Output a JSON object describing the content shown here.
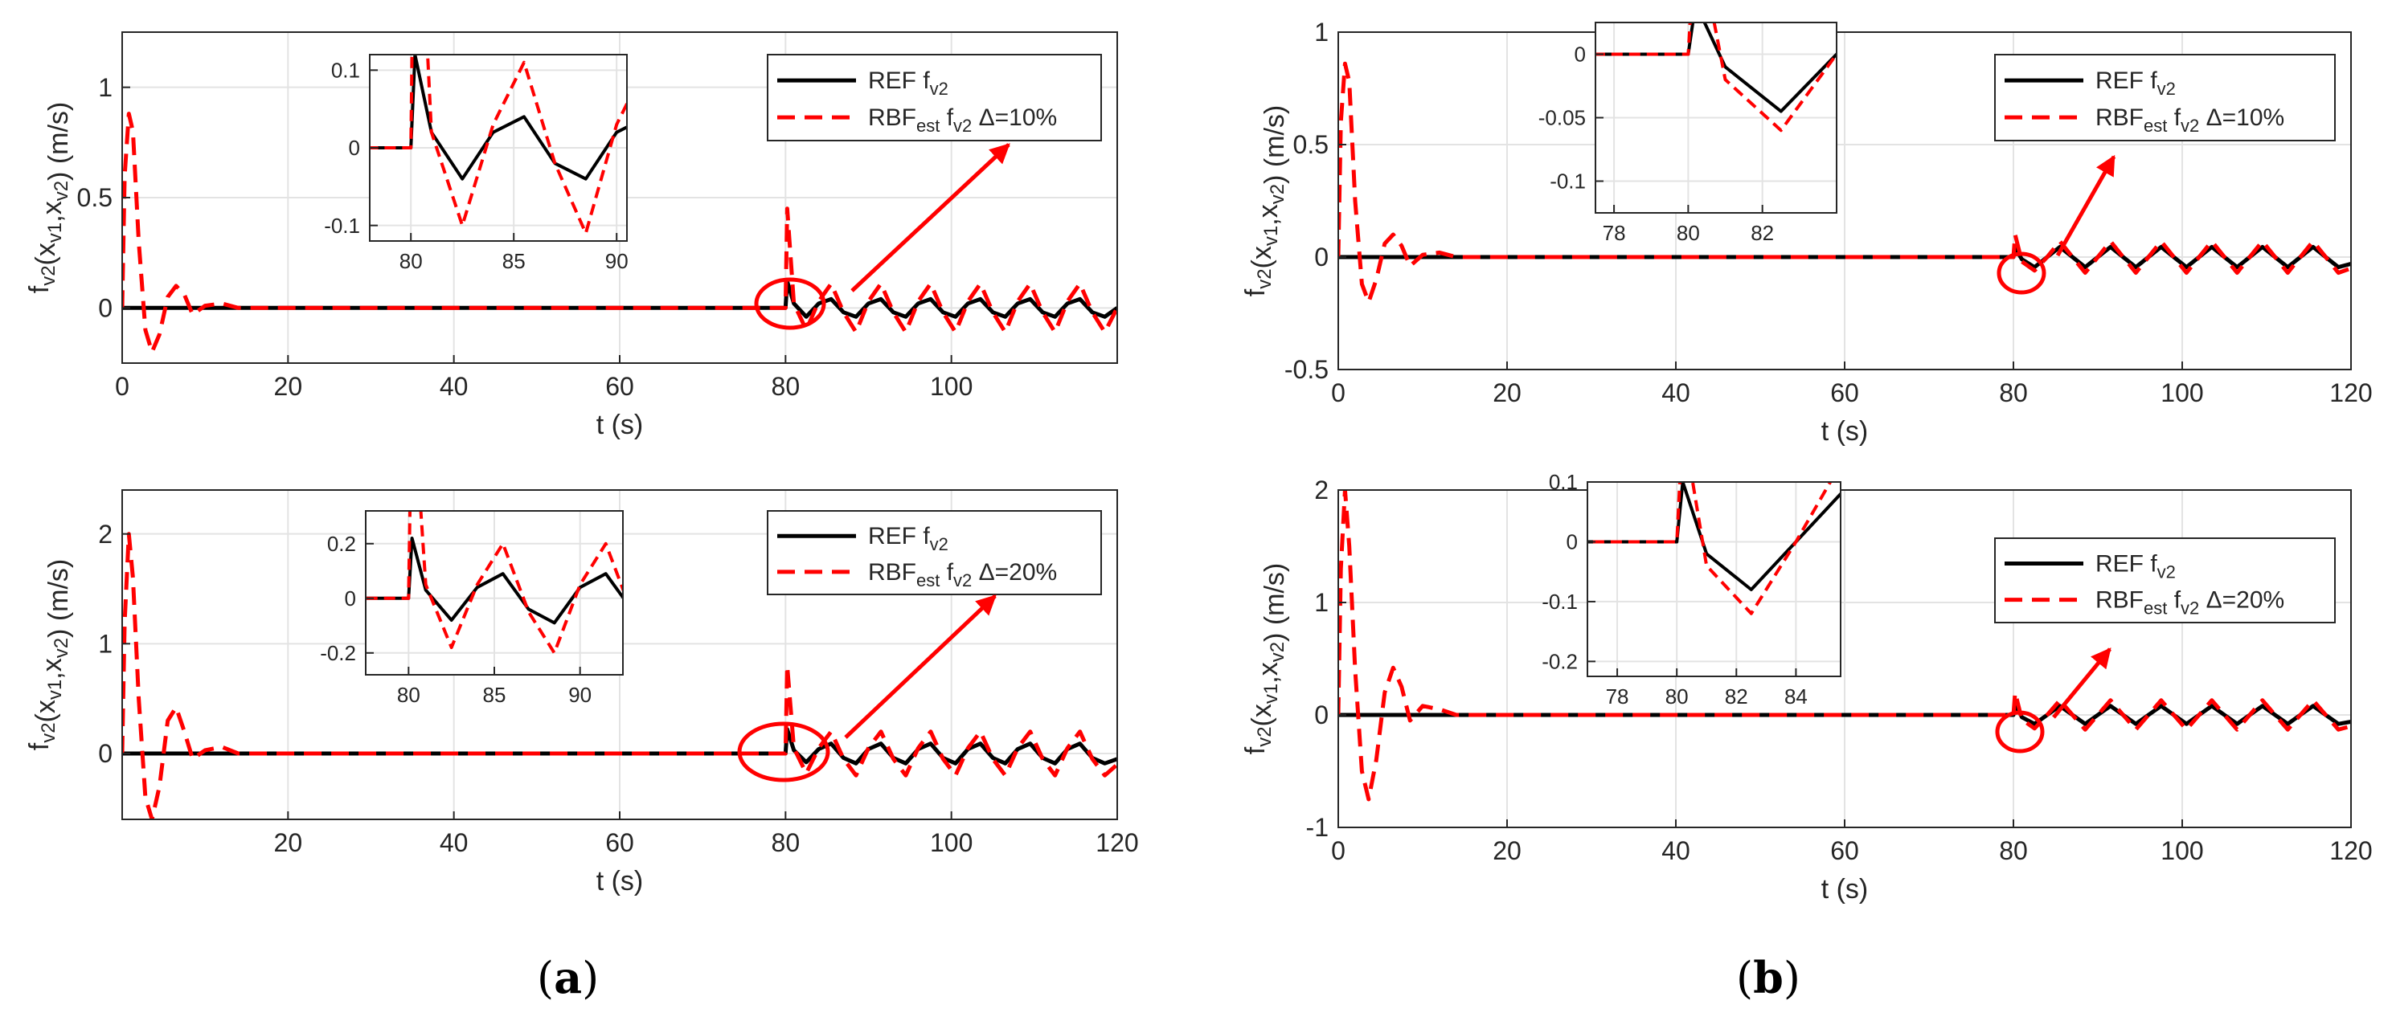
{
  "panel_labels": [
    {
      "open": "(",
      "letter": "a",
      "close": ")"
    },
    {
      "open": "(",
      "letter": "b",
      "close": ")"
    }
  ],
  "chart_data": [
    {
      "type": "line",
      "panel": "a",
      "xlabel": "t (s)",
      "ylabel": "f_v2(x_v1,x_v2) (m/s)",
      "xlim": [
        0,
        120
      ],
      "ylim": [
        -0.25,
        1.25
      ],
      "xticks": [
        0,
        20,
        40,
        60,
        80,
        100
      ],
      "yticks": [
        0,
        0.5,
        1
      ],
      "ytick_labels": [
        "0",
        "0.5",
        "1"
      ],
      "grid": true,
      "legend_position": "top-right",
      "delta": "10%",
      "series": [
        {
          "name": "REF f_v2",
          "color": "#000000",
          "style": "solid",
          "x": [
            0,
            80,
            80.2,
            81,
            82.5,
            84,
            85.5,
            87,
            88.5,
            90,
            91.5,
            93,
            94.5,
            96,
            97.5,
            99,
            100.5,
            102,
            103.5,
            105,
            106.5,
            108,
            109.5,
            111,
            112.5,
            114,
            115.5,
            117,
            118.5,
            120
          ],
          "y": [
            0,
            0,
            0.12,
            0.02,
            -0.04,
            0.02,
            0.04,
            -0.02,
            -0.04,
            0.02,
            0.04,
            -0.02,
            -0.04,
            0.02,
            0.04,
            -0.02,
            -0.04,
            0.02,
            0.04,
            -0.02,
            -0.04,
            0.02,
            0.04,
            -0.02,
            -0.04,
            0.02,
            0.04,
            -0.02,
            -0.04,
            0.0
          ]
        },
        {
          "name": "RBF_est f_v2 Δ=10%",
          "color": "#ff0000",
          "style": "dashed",
          "x": [
            0,
            0.3,
            0.8,
            1.3,
            2,
            2.8,
            3.6,
            4.5,
            5.5,
            6.5,
            7.5,
            8.5,
            10,
            12,
            14,
            80,
            80.2,
            81,
            82.5,
            84,
            85.5,
            87,
            88.5,
            90,
            91.5,
            93,
            94.5,
            96,
            97.5,
            99,
            100.5,
            102,
            103.5,
            105,
            106.5,
            108,
            109.5,
            111,
            112.5,
            114,
            115.5,
            117,
            118.5,
            120
          ],
          "y": [
            0,
            0.6,
            0.88,
            0.8,
            0.3,
            -0.1,
            -0.2,
            -0.12,
            0.05,
            0.1,
            0.06,
            -0.03,
            0.01,
            0.02,
            0,
            0,
            0.45,
            0.02,
            -0.1,
            0.03,
            0.11,
            -0.02,
            -0.11,
            0.03,
            0.11,
            -0.02,
            -0.11,
            0.03,
            0.11,
            -0.02,
            -0.11,
            0.03,
            0.11,
            -0.02,
            -0.11,
            0.03,
            0.11,
            -0.02,
            -0.11,
            0.03,
            0.11,
            -0.02,
            -0.11,
            0.0
          ]
        }
      ],
      "inset": {
        "xlim": [
          78,
          90.5
        ],
        "ylim": [
          -0.12,
          0.12
        ],
        "xticks": [
          80,
          85,
          90
        ],
        "yticks": [
          -0.1,
          0,
          0.1
        ],
        "ytick_labels": [
          "-0.1",
          "0",
          "0.1"
        ]
      }
    },
    {
      "type": "line",
      "panel": "a",
      "xlabel": "t (s)",
      "ylabel": "f_v2(x_v1,x_v2) (m/s)",
      "xlim": [
        0,
        120
      ],
      "ylim": [
        -0.6,
        2.4
      ],
      "xticks": [
        20,
        40,
        60,
        80,
        100,
        120
      ],
      "yticks": [
        0,
        1,
        2
      ],
      "ytick_labels": [
        "0",
        "1",
        "2"
      ],
      "grid": true,
      "legend_position": "top-right",
      "delta": "20%",
      "series": [
        {
          "name": "REF f_v2",
          "color": "#000000",
          "style": "solid",
          "x": [
            0,
            80,
            80.2,
            81,
            82.5,
            84,
            85.5,
            87,
            88.5,
            90,
            91.5,
            93,
            94.5,
            96,
            97.5,
            99,
            100.5,
            102,
            103.5,
            105,
            106.5,
            108,
            109.5,
            111,
            112.5,
            114,
            115.5,
            117,
            118.5,
            120
          ],
          "y": [
            0,
            0,
            0.22,
            0.03,
            -0.08,
            0.04,
            0.09,
            -0.04,
            -0.09,
            0.04,
            0.09,
            -0.04,
            -0.09,
            0.04,
            0.09,
            -0.04,
            -0.09,
            0.04,
            0.09,
            -0.04,
            -0.09,
            0.04,
            0.09,
            -0.04,
            -0.09,
            0.04,
            0.09,
            -0.04,
            -0.09,
            -0.05
          ]
        },
        {
          "name": "RBF_est f_v2 Δ=20%",
          "color": "#ff0000",
          "style": "dashed",
          "x": [
            0,
            0.3,
            0.8,
            1.3,
            2,
            2.8,
            3.6,
            4.5,
            5.5,
            6.5,
            7.5,
            8.5,
            10,
            12,
            14,
            80,
            80.2,
            81,
            82.5,
            84,
            85.5,
            87,
            88.5,
            90,
            91.5,
            93,
            94.5,
            96,
            97.5,
            99,
            100.5,
            102,
            103.5,
            105,
            106.5,
            108,
            109.5,
            111,
            112.5,
            114,
            115.5,
            117,
            118.5,
            120
          ],
          "y": [
            0,
            1.2,
            2.0,
            1.6,
            0.5,
            -0.4,
            -0.6,
            -0.3,
            0.3,
            0.42,
            0.2,
            -0.05,
            0.03,
            0.06,
            0,
            0,
            0.8,
            0.05,
            -0.18,
            0.05,
            0.2,
            -0.05,
            -0.2,
            0.05,
            0.2,
            -0.05,
            -0.2,
            0.05,
            0.2,
            -0.05,
            -0.2,
            0.05,
            0.2,
            -0.05,
            -0.2,
            0.05,
            0.2,
            -0.05,
            -0.2,
            0.05,
            0.2,
            -0.05,
            -0.2,
            -0.1
          ]
        }
      ],
      "inset": {
        "xlim": [
          77.5,
          92.5
        ],
        "ylim": [
          -0.28,
          0.32
        ],
        "xticks": [
          80,
          85,
          90
        ],
        "yticks": [
          -0.2,
          0,
          0.2
        ],
        "ytick_labels": [
          "-0.2",
          "0",
          "0.2"
        ]
      }
    },
    {
      "type": "line",
      "panel": "b",
      "xlabel": "t (s)",
      "ylabel": "f_v2(x_v1,x_v2) (m/s)",
      "xlim": [
        0,
        120
      ],
      "ylim": [
        -0.5,
        1
      ],
      "xticks": [
        0,
        20,
        40,
        60,
        80,
        100,
        120
      ],
      "yticks": [
        -0.5,
        0,
        0.5,
        1
      ],
      "ytick_labels": [
        "-0.5",
        "0",
        "0.5",
        "1"
      ],
      "grid": true,
      "legend_position": "top-right",
      "delta": "10%",
      "series": [
        {
          "name": "REF f_v2",
          "color": "#000000",
          "style": "solid",
          "x": [
            0,
            80,
            80.2,
            81,
            82.5,
            84,
            85.5,
            87,
            88.5,
            90,
            91.5,
            93,
            94.5,
            96,
            97.5,
            99,
            100.5,
            102,
            103.5,
            105,
            106.5,
            108,
            109.5,
            111,
            112.5,
            114,
            115.5,
            117,
            118.5,
            120
          ],
          "y": [
            0,
            0,
            0.04,
            -0.01,
            -0.045,
            0.0,
            0.045,
            0.0,
            -0.045,
            0.0,
            0.045,
            0.0,
            -0.045,
            0.0,
            0.045,
            0.0,
            -0.045,
            0.0,
            0.045,
            0.0,
            -0.045,
            0.0,
            0.045,
            0.0,
            -0.045,
            0.0,
            0.045,
            0.0,
            -0.045,
            -0.03
          ]
        },
        {
          "name": "RBF_est f_v2 Δ=10%",
          "color": "#ff0000",
          "style": "dashed",
          "x": [
            0,
            0.3,
            0.8,
            1.3,
            2,
            2.8,
            3.6,
            4.5,
            5.5,
            6.5,
            7.5,
            8.5,
            10,
            12,
            14,
            80,
            80.2,
            81,
            82.5,
            84,
            85.5,
            87,
            88.5,
            90,
            91.5,
            93,
            94.5,
            96,
            97.5,
            99,
            100.5,
            102,
            103.5,
            105,
            106.5,
            108,
            109.5,
            111,
            112.5,
            114,
            115.5,
            117,
            118.5,
            120
          ],
          "y": [
            0,
            0.6,
            0.86,
            0.78,
            0.25,
            -0.12,
            -0.2,
            -0.1,
            0.06,
            0.1,
            0.05,
            -0.04,
            0.01,
            0.02,
            0,
            0,
            0.1,
            -0.02,
            -0.06,
            0.0,
            0.07,
            0.0,
            -0.07,
            0.0,
            0.07,
            0.0,
            -0.07,
            0.0,
            0.07,
            0.0,
            -0.07,
            0.0,
            0.07,
            0.0,
            -0.07,
            0.0,
            0.07,
            0.0,
            -0.07,
            0.0,
            0.07,
            0.0,
            -0.07,
            -0.05
          ]
        }
      ],
      "inset": {
        "xlim": [
          77.5,
          84
        ],
        "ylim": [
          -0.125,
          0.025
        ],
        "xticks": [
          78,
          80,
          82
        ],
        "yticks": [
          -0.1,
          -0.05,
          0
        ],
        "ytick_labels": [
          "-0.1",
          "-0.05",
          "0"
        ]
      }
    },
    {
      "type": "line",
      "panel": "b",
      "xlabel": "t (s)",
      "ylabel": "f_v2(x_v1,x_v2) (m/s)",
      "xlim": [
        0,
        120
      ],
      "ylim": [
        -1,
        2
      ],
      "xticks": [
        0,
        20,
        40,
        60,
        80,
        100,
        120
      ],
      "yticks": [
        -1,
        0,
        1,
        2
      ],
      "ytick_labels": [
        "-1",
        "0",
        "1",
        "2"
      ],
      "grid": true,
      "legend_position": "top-right",
      "delta": "20%",
      "series": [
        {
          "name": "REF f_v2",
          "color": "#000000",
          "style": "solid",
          "x": [
            0,
            80,
            80.2,
            81,
            82.5,
            84,
            85.5,
            87,
            88.5,
            90,
            91.5,
            93,
            94.5,
            96,
            97.5,
            99,
            100.5,
            102,
            103.5,
            105,
            106.5,
            108,
            109.5,
            111,
            112.5,
            114,
            115.5,
            117,
            118.5,
            120
          ],
          "y": [
            0,
            0,
            0.1,
            -0.02,
            -0.08,
            0.0,
            0.08,
            0.0,
            -0.08,
            0.0,
            0.08,
            0.0,
            -0.08,
            0.0,
            0.08,
            0.0,
            -0.08,
            0.0,
            0.08,
            0.0,
            -0.08,
            0.0,
            0.08,
            0.0,
            -0.08,
            0.0,
            0.08,
            0.0,
            -0.08,
            -0.06
          ]
        },
        {
          "name": "RBF_est f_v2 Δ=20%",
          "color": "#ff0000",
          "style": "dashed",
          "x": [
            0,
            0.3,
            0.8,
            1.3,
            2,
            2.8,
            3.6,
            4.5,
            5.5,
            6.5,
            7.5,
            8.5,
            10,
            12,
            14,
            80,
            80.2,
            81,
            82.5,
            84,
            85.5,
            87,
            88.5,
            90,
            91.5,
            93,
            94.5,
            96,
            97.5,
            99,
            100.5,
            102,
            103.5,
            105,
            106.5,
            108,
            109.5,
            111,
            112.5,
            114,
            115.5,
            117,
            118.5,
            120
          ],
          "y": [
            0,
            1.3,
            2.0,
            1.5,
            0.4,
            -0.5,
            -0.75,
            -0.4,
            0.2,
            0.42,
            0.25,
            -0.05,
            0.08,
            0.05,
            0,
            0,
            0.2,
            -0.04,
            -0.12,
            0.0,
            0.13,
            0.0,
            -0.13,
            0.0,
            0.13,
            0.0,
            -0.13,
            0.0,
            0.13,
            0.0,
            -0.13,
            0.0,
            0.13,
            0.0,
            -0.13,
            0.0,
            0.13,
            0.0,
            -0.13,
            0.0,
            0.13,
            0.0,
            -0.13,
            -0.1
          ]
        }
      ],
      "inset": {
        "xlim": [
          77,
          85.5
        ],
        "ylim": [
          -0.225,
          0.1
        ],
        "xticks": [
          78,
          80,
          82,
          84
        ],
        "yticks": [
          -0.2,
          -0.1,
          0,
          0.1
        ],
        "ytick_labels": [
          "-0.2",
          "-0.1",
          "0",
          "0.1"
        ]
      }
    }
  ]
}
